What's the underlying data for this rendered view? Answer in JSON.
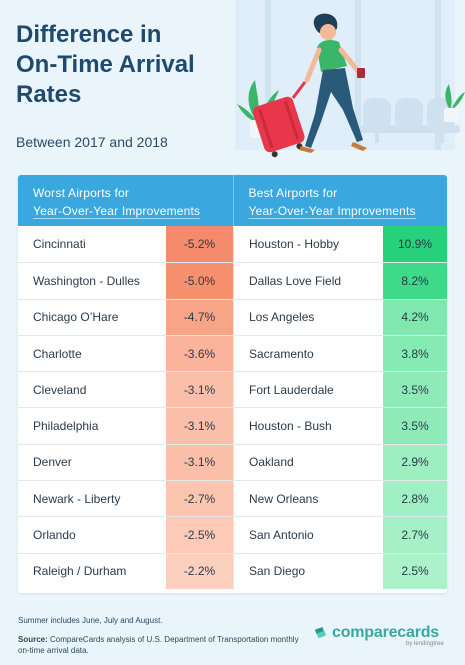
{
  "header": {
    "title_lines": [
      "Difference in",
      "On-Time Arrival",
      "Rates"
    ],
    "subtitle": "Between 2017 and 2018"
  },
  "table": {
    "worst_header": [
      "Worst Airports for",
      "Year-Over-Year Improvements"
    ],
    "best_header": [
      "Best Airports for",
      "Year-Over-Year Improvements"
    ],
    "worst": [
      {
        "name": "Cincinnati",
        "value": "-5.2%",
        "color": "#f58a6c"
      },
      {
        "name": "Washington - Dulles",
        "value": "-5.0%",
        "color": "#f6906f"
      },
      {
        "name": "Chicago O’Hare",
        "value": "-4.7%",
        "color": "#f8a487"
      },
      {
        "name": "Charlotte",
        "value": "-3.6%",
        "color": "#fab49b"
      },
      {
        "name": "Cleveland",
        "value": "-3.1%",
        "color": "#fbbea8"
      },
      {
        "name": "Philadelphia",
        "value": "-3.1%",
        "color": "#fbbea8"
      },
      {
        "name": "Denver",
        "value": "-3.1%",
        "color": "#fbbea8"
      },
      {
        "name": "Newark - Liberty",
        "value": "-2.7%",
        "color": "#fcc5b0"
      },
      {
        "name": "Orlando",
        "value": "-2.5%",
        "color": "#fccab7"
      },
      {
        "name": "Raleigh / Durham",
        "value": "-2.2%",
        "color": "#fcd0be"
      }
    ],
    "best": [
      {
        "name": "Houston - Hobby",
        "value": "10.9%",
        "color": "#27d07a"
      },
      {
        "name": "Dallas Love Field",
        "value": "8.2%",
        "color": "#3fd98a"
      },
      {
        "name": "Los Angeles",
        "value": "4.2%",
        "color": "#7ee8ae"
      },
      {
        "name": "Sacramento",
        "value": "3.8%",
        "color": "#86eab3"
      },
      {
        "name": "Fort Lauderdale",
        "value": "3.5%",
        "color": "#8eebb8"
      },
      {
        "name": "Houston - Bush",
        "value": "3.5%",
        "color": "#8eebb8"
      },
      {
        "name": "Oakland",
        "value": "2.9%",
        "color": "#9deec1"
      },
      {
        "name": "New Orleans",
        "value": "2.8%",
        "color": "#a1efc4"
      },
      {
        "name": "San Antonio",
        "value": "2.7%",
        "color": "#a5f0c6"
      },
      {
        "name": "San Diego",
        "value": "2.5%",
        "color": "#abf1ca"
      }
    ]
  },
  "footer": {
    "note": "Summer includes June, July and August.",
    "source_label": "Source:",
    "source_text": " CompareCards analysis of U.S. Department of Transportation monthly on-time arrival data."
  },
  "logo": {
    "name": "comparecards",
    "sub": "by lendingtree",
    "color": "#3aa7a0"
  }
}
